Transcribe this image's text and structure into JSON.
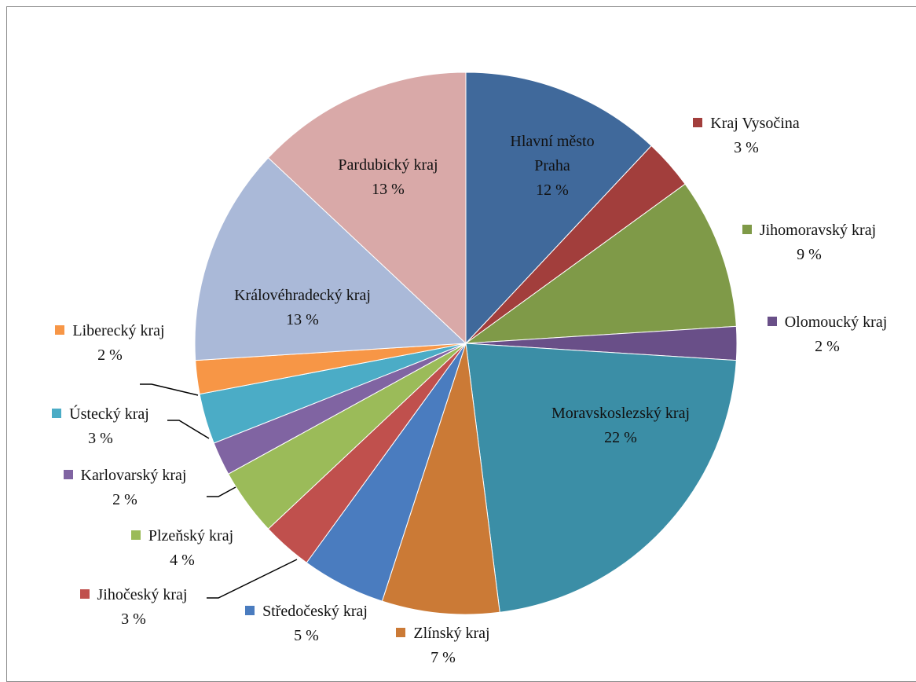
{
  "chart_data": {
    "type": "pie",
    "categories": [
      "Hlavní město Praha",
      "Kraj Vysočina",
      "Jihomoravský kraj",
      "Olomoucký kraj",
      "Moravskoslezský kraj",
      "Zlínský kraj",
      "Středočeský kraj",
      "Jihočeský kraj",
      "Plzeňský kraj",
      "Karlovarský kraj",
      "Ústecký kraj",
      "Liberecký kraj",
      "Královéhradecký kraj",
      "Pardubický kraj"
    ],
    "values": [
      12,
      3,
      9,
      2,
      22,
      7,
      5,
      3,
      4,
      2,
      3,
      2,
      13,
      13
    ],
    "value_labels": [
      "12 %",
      "3 %",
      "9 %",
      "2 %",
      "22 %",
      "7 %",
      "5 %",
      "3 %",
      "4 %",
      "2 %",
      "3 %",
      "2 %",
      "13 %",
      "13 %"
    ],
    "colors": [
      "#40699b",
      "#a23e3c",
      "#7f9a48",
      "#694f88",
      "#3b8ea6",
      "#cb7a36",
      "#4a7cbf",
      "#c0504d",
      "#9bbb59",
      "#8064a2",
      "#4bacc6",
      "#f79646",
      "#aab9d8",
      "#d9a9a8"
    ]
  }
}
